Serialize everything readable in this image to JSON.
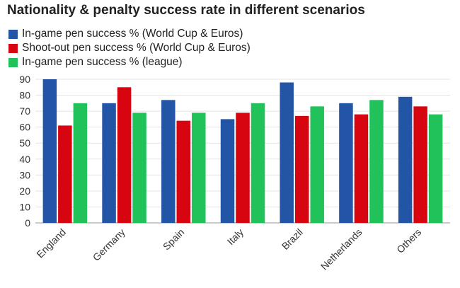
{
  "chart_data": {
    "type": "bar",
    "title": "Nationality & penalty success rate in different scenarios",
    "categories": [
      "England",
      "Germany",
      "Spain",
      "Italy",
      "Brazil",
      "Netherlands",
      "Others"
    ],
    "series": [
      {
        "name": "In-game pen success % (World Cup & Euros)",
        "color": "#2355a6",
        "values": [
          90,
          75,
          77,
          65,
          88,
          75,
          79
        ]
      },
      {
        "name": "Shoot-out pen success % (World Cup & Euros)",
        "color": "#d7050f",
        "values": [
          61,
          85,
          64,
          69,
          67,
          68,
          73
        ]
      },
      {
        "name": "In-game pen success % (league)",
        "color": "#22c25a",
        "values": [
          75,
          69,
          69,
          75,
          73,
          77,
          68
        ]
      }
    ],
    "yticks": [
      0,
      10,
      20,
      30,
      40,
      50,
      60,
      70,
      80,
      90
    ],
    "ylim": [
      0,
      90
    ],
    "grid": true,
    "legend_position": "top-left",
    "xlabel": "",
    "ylabel": ""
  }
}
